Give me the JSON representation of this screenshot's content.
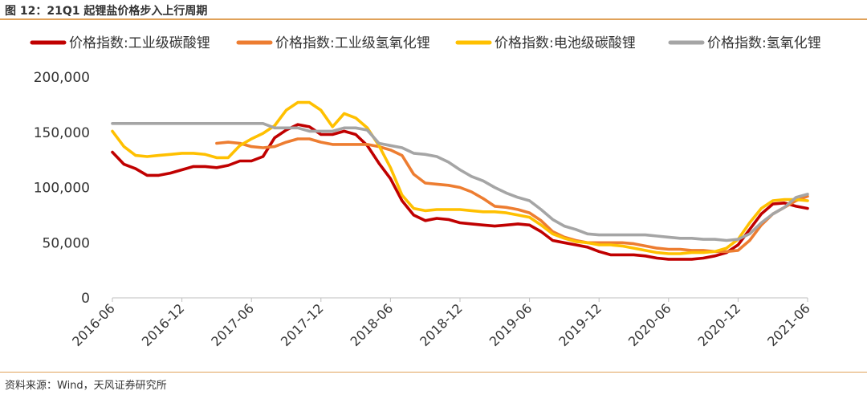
{
  "figure": {
    "title": "图 12：21Q1 起锂盐价格步入上行周期",
    "source": "资料来源：Wind，天风证券研究所"
  },
  "chart_data": {
    "type": "line",
    "title": "",
    "xlabel": "",
    "ylabel": "",
    "ylim": [
      0,
      200000
    ],
    "yticks": [
      0,
      50000,
      100000,
      150000,
      200000
    ],
    "ytick_labels": [
      "0",
      "50,000",
      "100,000",
      "150,000",
      "200,000"
    ],
    "xlim": [
      "2016-06",
      "2021-06"
    ],
    "xtick_labels": [
      "2016-06",
      "2016-12",
      "2017-06",
      "2017-12",
      "2018-06",
      "2018-12",
      "2019-06",
      "2019-12",
      "2020-06",
      "2020-12",
      "2021-06"
    ],
    "legend_position": "top",
    "grid": false,
    "series": [
      {
        "name": "价格指数:工业级碳酸锂",
        "color": "#c00000",
        "points": [
          [
            "2016-06",
            132000
          ],
          [
            "2016-07",
            121000
          ],
          [
            "2016-08",
            117000
          ],
          [
            "2016-09",
            111000
          ],
          [
            "2016-10",
            111000
          ],
          [
            "2016-11",
            113000
          ],
          [
            "2016-12",
            116000
          ],
          [
            "2017-01",
            119000
          ],
          [
            "2017-02",
            119000
          ],
          [
            "2017-03",
            118000
          ],
          [
            "2017-04",
            120000
          ],
          [
            "2017-05",
            124000
          ],
          [
            "2017-06",
            124000
          ],
          [
            "2017-07",
            128000
          ],
          [
            "2017-08",
            145000
          ],
          [
            "2017-09",
            152000
          ],
          [
            "2017-10",
            157000
          ],
          [
            "2017-11",
            155000
          ],
          [
            "2017-12",
            148000
          ],
          [
            "2018-01",
            148000
          ],
          [
            "2018-02",
            151000
          ],
          [
            "2018-03",
            148000
          ],
          [
            "2018-04",
            138000
          ],
          [
            "2018-05",
            122000
          ],
          [
            "2018-06",
            108000
          ],
          [
            "2018-07",
            88000
          ],
          [
            "2018-08",
            75000
          ],
          [
            "2018-09",
            70000
          ],
          [
            "2018-10",
            72000
          ],
          [
            "2018-11",
            71000
          ],
          [
            "2018-12",
            68000
          ],
          [
            "2019-01",
            67000
          ],
          [
            "2019-02",
            66000
          ],
          [
            "2019-03",
            65000
          ],
          [
            "2019-04",
            66000
          ],
          [
            "2019-05",
            67000
          ],
          [
            "2019-06",
            66000
          ],
          [
            "2019-07",
            60000
          ],
          [
            "2019-08",
            52000
          ],
          [
            "2019-09",
            50000
          ],
          [
            "2019-10",
            48000
          ],
          [
            "2019-11",
            46000
          ],
          [
            "2019-12",
            42000
          ],
          [
            "2020-01",
            39000
          ],
          [
            "2020-02",
            39000
          ],
          [
            "2020-03",
            39000
          ],
          [
            "2020-04",
            38000
          ],
          [
            "2020-05",
            36000
          ],
          [
            "2020-06",
            35000
          ],
          [
            "2020-07",
            35000
          ],
          [
            "2020-08",
            35000
          ],
          [
            "2020-09",
            36000
          ],
          [
            "2020-10",
            38000
          ],
          [
            "2020-11",
            41000
          ],
          [
            "2020-12",
            48000
          ],
          [
            "2021-01",
            62000
          ],
          [
            "2021-02",
            76000
          ],
          [
            "2021-03",
            85000
          ],
          [
            "2021-04",
            86000
          ],
          [
            "2021-05",
            83000
          ],
          [
            "2021-06",
            81000
          ]
        ]
      },
      {
        "name": "价格指数:工业级氢氧化锂",
        "color": "#ed7d31",
        "points": [
          [
            "2017-03",
            140000
          ],
          [
            "2017-04",
            141000
          ],
          [
            "2017-05",
            140000
          ],
          [
            "2017-06",
            137000
          ],
          [
            "2017-07",
            136000
          ],
          [
            "2017-08",
            137000
          ],
          [
            "2017-09",
            141000
          ],
          [
            "2017-10",
            144000
          ],
          [
            "2017-11",
            144000
          ],
          [
            "2017-12",
            141000
          ],
          [
            "2018-01",
            139000
          ],
          [
            "2018-02",
            139000
          ],
          [
            "2018-03",
            139000
          ],
          [
            "2018-04",
            139000
          ],
          [
            "2018-05",
            137000
          ],
          [
            "2018-06",
            134000
          ],
          [
            "2018-07",
            129000
          ],
          [
            "2018-08",
            112000
          ],
          [
            "2018-09",
            104000
          ],
          [
            "2018-10",
            103000
          ],
          [
            "2018-11",
            102000
          ],
          [
            "2018-12",
            100000
          ],
          [
            "2019-01",
            96000
          ],
          [
            "2019-02",
            90000
          ],
          [
            "2019-03",
            83000
          ],
          [
            "2019-04",
            82000
          ],
          [
            "2019-05",
            80000
          ],
          [
            "2019-06",
            77000
          ],
          [
            "2019-07",
            70000
          ],
          [
            "2019-08",
            60000
          ],
          [
            "2019-09",
            55000
          ],
          [
            "2019-10",
            52000
          ],
          [
            "2019-11",
            50000
          ],
          [
            "2019-12",
            50000
          ],
          [
            "2020-01",
            50000
          ],
          [
            "2020-02",
            50000
          ],
          [
            "2020-03",
            49000
          ],
          [
            "2020-04",
            47000
          ],
          [
            "2020-05",
            45000
          ],
          [
            "2020-06",
            44000
          ],
          [
            "2020-07",
            44000
          ],
          [
            "2020-08",
            43000
          ],
          [
            "2020-09",
            43000
          ],
          [
            "2020-10",
            42000
          ],
          [
            "2020-11",
            42000
          ],
          [
            "2020-12",
            43000
          ],
          [
            "2021-01",
            52000
          ],
          [
            "2021-02",
            66000
          ],
          [
            "2021-03",
            76000
          ],
          [
            "2021-04",
            82000
          ],
          [
            "2021-05",
            88000
          ],
          [
            "2021-06",
            92000
          ]
        ]
      },
      {
        "name": "价格指数:电池级碳酸锂",
        "color": "#ffc000",
        "points": [
          [
            "2016-06",
            151000
          ],
          [
            "2016-07",
            137000
          ],
          [
            "2016-08",
            129000
          ],
          [
            "2016-09",
            128000
          ],
          [
            "2016-10",
            129000
          ],
          [
            "2016-11",
            130000
          ],
          [
            "2016-12",
            131000
          ],
          [
            "2017-01",
            131000
          ],
          [
            "2017-02",
            130000
          ],
          [
            "2017-03",
            127000
          ],
          [
            "2017-04",
            127000
          ],
          [
            "2017-05",
            138000
          ],
          [
            "2017-06",
            144000
          ],
          [
            "2017-07",
            149000
          ],
          [
            "2017-08",
            156000
          ],
          [
            "2017-09",
            170000
          ],
          [
            "2017-10",
            177000
          ],
          [
            "2017-11",
            177000
          ],
          [
            "2017-12",
            170000
          ],
          [
            "2018-01",
            155000
          ],
          [
            "2018-02",
            167000
          ],
          [
            "2018-03",
            163000
          ],
          [
            "2018-04",
            154000
          ],
          [
            "2018-05",
            138000
          ],
          [
            "2018-06",
            118000
          ],
          [
            "2018-07",
            93000
          ],
          [
            "2018-08",
            81000
          ],
          [
            "2018-09",
            79000
          ],
          [
            "2018-10",
            80000
          ],
          [
            "2018-11",
            80000
          ],
          [
            "2018-12",
            80000
          ],
          [
            "2019-01",
            79000
          ],
          [
            "2019-02",
            78000
          ],
          [
            "2019-03",
            78000
          ],
          [
            "2019-04",
            77000
          ],
          [
            "2019-05",
            75000
          ],
          [
            "2019-06",
            73000
          ],
          [
            "2019-07",
            66000
          ],
          [
            "2019-08",
            58000
          ],
          [
            "2019-09",
            54000
          ],
          [
            "2019-10",
            51000
          ],
          [
            "2019-11",
            50000
          ],
          [
            "2019-12",
            48000
          ],
          [
            "2020-01",
            48000
          ],
          [
            "2020-02",
            47000
          ],
          [
            "2020-03",
            45000
          ],
          [
            "2020-04",
            43000
          ],
          [
            "2020-05",
            41000
          ],
          [
            "2020-06",
            40000
          ],
          [
            "2020-07",
            40000
          ],
          [
            "2020-08",
            41000
          ],
          [
            "2020-09",
            41000
          ],
          [
            "2020-10",
            42000
          ],
          [
            "2020-11",
            45000
          ],
          [
            "2020-12",
            53000
          ],
          [
            "2021-01",
            68000
          ],
          [
            "2021-02",
            81000
          ],
          [
            "2021-03",
            88000
          ],
          [
            "2021-04",
            89000
          ],
          [
            "2021-05",
            89000
          ],
          [
            "2021-06",
            88000
          ]
        ]
      },
      {
        "name": "价格指数:氢氧化锂",
        "color": "#a5a5a5",
        "points": [
          [
            "2016-06",
            158000
          ],
          [
            "2016-09",
            158000
          ],
          [
            "2016-12",
            158000
          ],
          [
            "2017-03",
            158000
          ],
          [
            "2017-06",
            158000
          ],
          [
            "2017-07",
            158000
          ],
          [
            "2017-08",
            154000
          ],
          [
            "2017-09",
            154000
          ],
          [
            "2017-10",
            154000
          ],
          [
            "2017-11",
            151000
          ],
          [
            "2017-12",
            151000
          ],
          [
            "2018-01",
            151000
          ],
          [
            "2018-02",
            154000
          ],
          [
            "2018-03",
            154000
          ],
          [
            "2018-04",
            152000
          ],
          [
            "2018-05",
            140000
          ],
          [
            "2018-06",
            138000
          ],
          [
            "2018-07",
            136000
          ],
          [
            "2018-08",
            131000
          ],
          [
            "2018-09",
            130000
          ],
          [
            "2018-10",
            128000
          ],
          [
            "2018-11",
            123000
          ],
          [
            "2018-12",
            116000
          ],
          [
            "2019-01",
            110000
          ],
          [
            "2019-02",
            106000
          ],
          [
            "2019-03",
            100000
          ],
          [
            "2019-04",
            95000
          ],
          [
            "2019-05",
            91000
          ],
          [
            "2019-06",
            88000
          ],
          [
            "2019-07",
            80000
          ],
          [
            "2019-08",
            71000
          ],
          [
            "2019-09",
            65000
          ],
          [
            "2019-10",
            62000
          ],
          [
            "2019-11",
            58000
          ],
          [
            "2019-12",
            57000
          ],
          [
            "2020-01",
            57000
          ],
          [
            "2020-02",
            57000
          ],
          [
            "2020-03",
            57000
          ],
          [
            "2020-04",
            57000
          ],
          [
            "2020-05",
            56000
          ],
          [
            "2020-06",
            55000
          ],
          [
            "2020-07",
            54000
          ],
          [
            "2020-08",
            54000
          ],
          [
            "2020-09",
            53000
          ],
          [
            "2020-10",
            53000
          ],
          [
            "2020-11",
            52000
          ],
          [
            "2020-12",
            53000
          ],
          [
            "2021-01",
            58000
          ],
          [
            "2021-02",
            68000
          ],
          [
            "2021-03",
            76000
          ],
          [
            "2021-04",
            82000
          ],
          [
            "2021-05",
            91000
          ],
          [
            "2021-06",
            94000
          ]
        ]
      }
    ]
  }
}
